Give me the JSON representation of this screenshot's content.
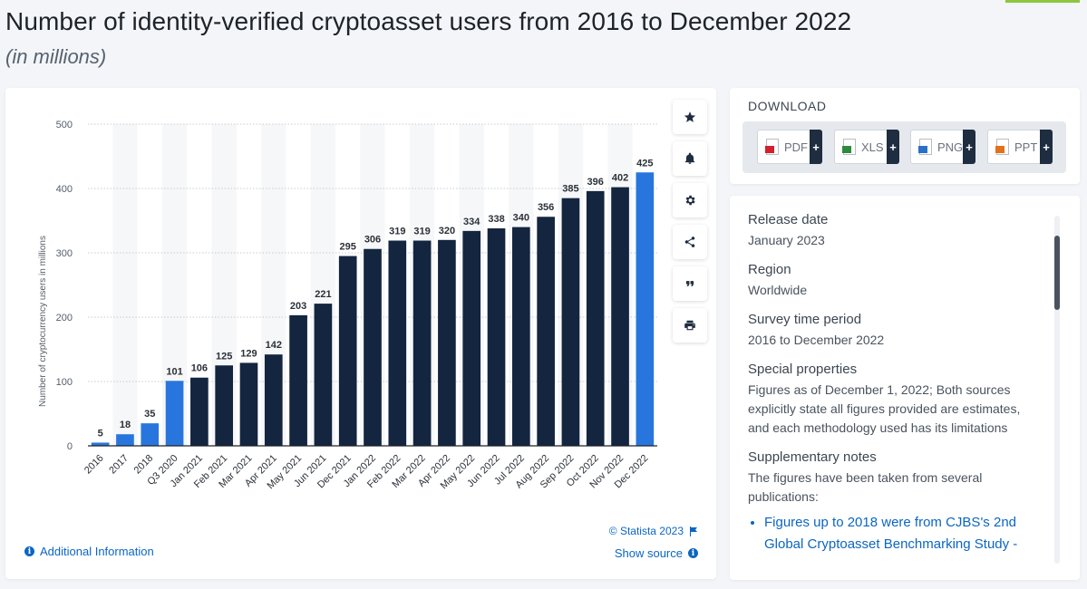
{
  "page": {
    "title": "Number of identity-verified cryptoasset users from 2016 to December 2022",
    "subtitle": "(in millions)"
  },
  "toolbar": {
    "buttons": [
      "star-icon",
      "bell-icon",
      "gear-icon",
      "share-icon",
      "quote-icon",
      "print-icon"
    ]
  },
  "chart_data": {
    "type": "bar",
    "title": "",
    "xlabel": "",
    "ylabel": "Number of cryptocurrency users in millions",
    "ylim": [
      0,
      500
    ],
    "yticks": [
      0,
      100,
      200,
      300,
      400,
      500
    ],
    "grid": true,
    "categories": [
      "2016",
      "2017",
      "2018",
      "Q3 2020",
      "Jan 2021",
      "Feb 2021",
      "Mar 2021",
      "Apr 2021",
      "May 2021",
      "Jun 2021",
      "Dec 2021",
      "Jan 2022",
      "Feb 2022",
      "Mar 2022",
      "Apr 2022",
      "May 2022",
      "Jun 2022",
      "Jul 2022",
      "Aug 2022",
      "Sep 2022",
      "Oct 2022",
      "Nov 2022",
      "Dec 2022"
    ],
    "values": [
      5,
      18,
      35,
      101,
      106,
      125,
      129,
      142,
      203,
      221,
      295,
      306,
      319,
      319,
      320,
      334,
      338,
      340,
      356,
      385,
      396,
      402,
      425
    ],
    "highlighted": [
      0,
      1,
      2,
      3,
      22
    ],
    "colors": {
      "highlight": "#2876dd",
      "default": "#13253f",
      "grid": "#c7ccd2",
      "axis": "#1e2329",
      "band": "#f6f7f9"
    }
  },
  "chart_footer": {
    "additional_info": "Additional Information",
    "copyright": "© Statista 2023",
    "show_source": "Show source"
  },
  "download": {
    "title": "DOWNLOAD",
    "buttons": [
      {
        "label": "PDF",
        "color": "#d4202c"
      },
      {
        "label": "XLS",
        "color": "#2e8b3e"
      },
      {
        "label": "PNG",
        "color": "#2a6fc9"
      },
      {
        "label": "PPT",
        "color": "#e4711a"
      }
    ],
    "plus": "+"
  },
  "meta": {
    "release_date_label": "Release date",
    "release_date": "January 2023",
    "region_label": "Region",
    "region": "Worldwide",
    "survey_label": "Survey time period",
    "survey": "2016 to December 2022",
    "special_label": "Special properties",
    "special": "Figures as of December 1, 2022; Both sources explicitly state all figures provided are estimates, and each methodology used has its limitations",
    "notes_label": "Supplementary notes",
    "notes": "The figures have been taken from several publications:",
    "notes_list": [
      "Figures up to 2018 were from CJBS's 2nd Global Cryptoasset Benchmarking Study -"
    ]
  }
}
